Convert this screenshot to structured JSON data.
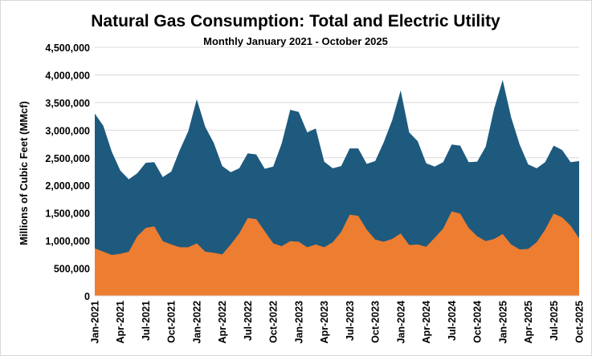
{
  "chart_data": {
    "type": "area",
    "title": "Natural Gas Consumption: Total and Electric Utility",
    "subtitle": "Monthly January 2021 - October 2025",
    "xlabel": "",
    "ylabel": "Millions of Cubic Feet (MMcf)",
    "ylim": [
      0,
      4500000
    ],
    "y_ticks": [
      0,
      500000,
      1000000,
      1500000,
      2000000,
      2500000,
      3000000,
      3500000,
      4000000,
      4500000
    ],
    "y_tick_labels": [
      "0",
      "500,000",
      "1,000,000",
      "1,500,000",
      "2,000,000",
      "2,500,000",
      "3,000,000",
      "3,500,000",
      "4,000,000",
      "4,500,000"
    ],
    "x_tick_labels": [
      "Jan-2021",
      "Apr-2021",
      "Jul-2021",
      "Oct-2021",
      "Jan-2022",
      "Apr-2022",
      "Jul-2022",
      "Oct-2022",
      "Jan-2023",
      "Apr-2023",
      "Jul-2023",
      "Oct-2023",
      "Jan-2024",
      "Apr-2024",
      "Jul-2024",
      "Oct-2024",
      "Jan-2025",
      "Apr-2025",
      "Jul-2025",
      "Oct-2025"
    ],
    "grid": true,
    "legend": "none",
    "series": [
      {
        "name": "Total",
        "color": "#1d5a7e",
        "values": [
          3300000,
          3080000,
          2610000,
          2270000,
          2110000,
          2220000,
          2410000,
          2420000,
          2150000,
          2250000,
          2640000,
          2980000,
          3560000,
          3060000,
          2770000,
          2350000,
          2240000,
          2310000,
          2580000,
          2560000,
          2300000,
          2340000,
          2760000,
          3370000,
          3330000,
          2960000,
          3030000,
          2430000,
          2310000,
          2350000,
          2670000,
          2670000,
          2390000,
          2440000,
          2780000,
          3180000,
          3720000,
          2960000,
          2800000,
          2400000,
          2340000,
          2420000,
          2740000,
          2720000,
          2420000,
          2430000,
          2700000,
          3390000,
          3910000,
          3230000,
          2740000,
          2380000,
          2310000,
          2420000,
          2720000,
          2640000,
          2420000,
          2440000
        ]
      },
      {
        "name": "Electric Utility",
        "color": "#ed7d31",
        "values": [
          860000,
          800000,
          740000,
          760000,
          800000,
          1080000,
          1230000,
          1260000,
          990000,
          930000,
          880000,
          880000,
          950000,
          800000,
          780000,
          750000,
          930000,
          1130000,
          1410000,
          1390000,
          1170000,
          950000,
          900000,
          990000,
          980000,
          880000,
          930000,
          880000,
          970000,
          1160000,
          1470000,
          1450000,
          1200000,
          1020000,
          980000,
          1030000,
          1130000,
          920000,
          930000,
          890000,
          1050000,
          1220000,
          1530000,
          1490000,
          1230000,
          1080000,
          990000,
          1030000,
          1120000,
          930000,
          840000,
          850000,
          970000,
          1200000,
          1490000,
          1420000,
          1270000,
          1040000
        ]
      }
    ]
  }
}
